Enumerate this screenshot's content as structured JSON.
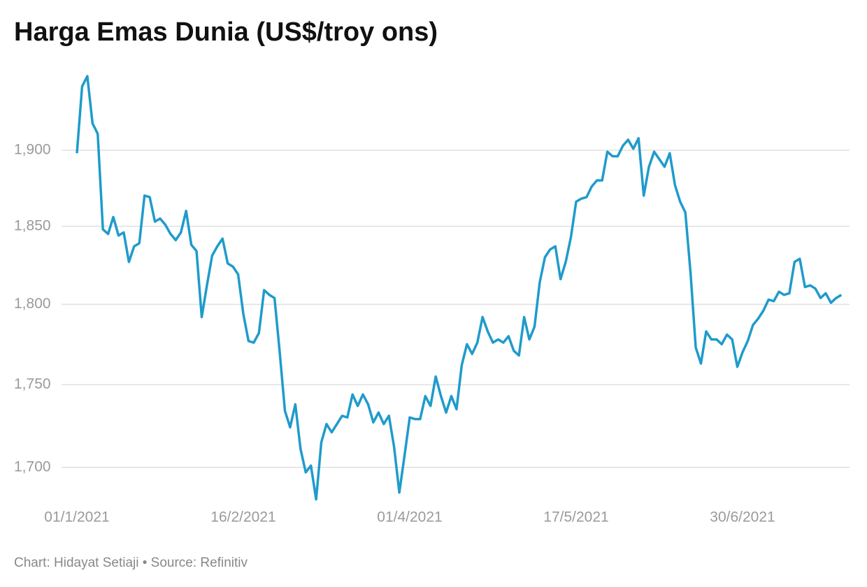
{
  "chart_data": {
    "type": "line",
    "title": "Harga Emas Dunia (US$/troy ons)",
    "source": "Chart: Hidayat Setiaji • Source: Refinitiv",
    "categories": [
      "01/1/2021",
      null,
      null,
      null,
      null,
      null,
      null,
      null,
      null,
      null,
      null,
      null,
      null,
      null,
      null,
      null,
      null,
      null,
      null,
      null,
      null,
      null,
      null,
      null,
      null,
      null,
      null,
      null,
      null,
      null,
      null,
      null,
      "16/2/2021",
      null,
      null,
      null,
      null,
      null,
      null,
      null,
      null,
      null,
      null,
      null,
      null,
      null,
      null,
      null,
      null,
      null,
      null,
      null,
      null,
      null,
      null,
      null,
      null,
      null,
      null,
      null,
      null,
      null,
      null,
      null,
      "01/4/2021",
      null,
      null,
      null,
      null,
      null,
      null,
      null,
      null,
      null,
      null,
      null,
      null,
      null,
      null,
      null,
      null,
      null,
      null,
      null,
      null,
      null,
      null,
      null,
      null,
      null,
      null,
      null,
      null,
      null,
      null,
      null,
      "17/5/2021",
      null,
      null,
      null,
      null,
      null,
      null,
      null,
      null,
      null,
      null,
      null,
      null,
      null,
      null,
      null,
      null,
      null,
      null,
      null,
      null,
      null,
      null,
      null,
      null,
      null,
      null,
      null,
      null,
      null,
      null,
      null,
      "30/6/2021",
      null,
      null,
      null,
      null,
      null,
      null,
      null,
      null,
      null,
      null,
      null,
      null,
      null,
      null,
      null,
      null,
      null,
      null,
      null
    ],
    "series": [
      {
        "name": "Harga Emas",
        "color": "#1f9bcb",
        "values": [
          1898,
          1943,
          1950,
          1918,
          1911,
          1848,
          1845,
          1856,
          1844,
          1846,
          1827,
          1837,
          1839,
          1870,
          1869,
          1853,
          1855,
          1851,
          1845,
          1841,
          1846,
          1860,
          1838,
          1834,
          1792,
          1812,
          1831,
          1837,
          1842,
          1826,
          1824,
          1819,
          1794,
          1777,
          1776,
          1782,
          1809,
          1806,
          1804,
          1770,
          1734,
          1724,
          1738,
          1711,
          1697,
          1701,
          1681,
          1715,
          1726,
          1721,
          1726,
          1731,
          1730,
          1744,
          1737,
          1744,
          1738,
          1727,
          1733,
          1726,
          1731,
          1712,
          1685,
          1707,
          1730,
          1729,
          1729,
          1743,
          1737,
          1755,
          1743,
          1733,
          1743,
          1735,
          1762,
          1775,
          1769,
          1776,
          1792,
          1783,
          1776,
          1778,
          1776,
          1780,
          1771,
          1768,
          1792,
          1778,
          1786,
          1814,
          1830,
          1835,
          1837,
          1816,
          1827,
          1843,
          1866,
          1868,
          1869,
          1876,
          1880,
          1880,
          1899,
          1896,
          1896,
          1903,
          1907,
          1901,
          1908,
          1870,
          1889,
          1899,
          1894,
          1889,
          1898,
          1877,
          1866,
          1859,
          1820,
          1773,
          1763,
          1783,
          1778,
          1778,
          1775,
          1781,
          1778,
          1761,
          1770,
          1777,
          1787,
          1791,
          1796,
          1803,
          1802,
          1808,
          1806,
          1807,
          1827,
          1829,
          1811,
          1812,
          1810,
          1804,
          1807,
          1801,
          1804,
          1806
        ]
      }
    ],
    "ylim": [
      1680,
      1950
    ],
    "yticks": [
      {
        "value": 1700,
        "label": "1,700"
      },
      {
        "value": 1750,
        "label": "1,750"
      },
      {
        "value": 1800,
        "label": "1,800"
      },
      {
        "value": 1850,
        "label": "1,850"
      },
      {
        "value": 1900,
        "label": "1,900"
      }
    ],
    "log_y": true,
    "grid": true
  }
}
